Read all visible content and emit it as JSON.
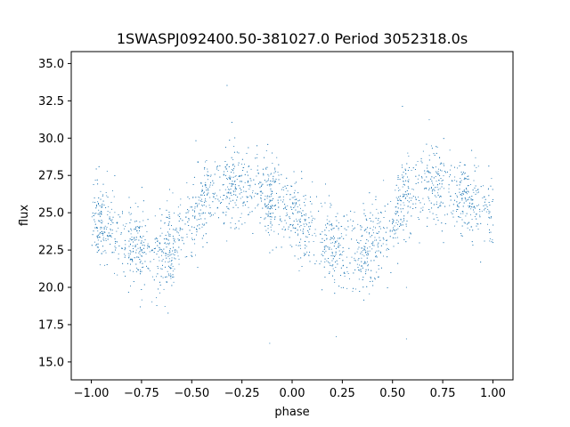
{
  "chart_data": {
    "type": "scatter",
    "title": "1SWASPJ092400.50-381027.0 Period 3052318.0s",
    "xlabel": "phase",
    "ylabel": "flux",
    "xlim": [
      -1.1,
      1.1
    ],
    "ylim": [
      13.8,
      35.8
    ],
    "xticks": [
      -1.0,
      -0.75,
      -0.5,
      -0.25,
      0.0,
      0.25,
      0.5,
      0.75,
      1.0
    ],
    "xtick_labels": [
      "−1.00",
      "−0.75",
      "−0.50",
      "−0.25",
      "0.00",
      "0.25",
      "0.50",
      "0.75",
      "1.00"
    ],
    "yticks": [
      15.0,
      17.5,
      20.0,
      22.5,
      25.0,
      27.5,
      30.0,
      32.5,
      35.0
    ],
    "ytick_labels": [
      "15.0",
      "17.5",
      "20.0",
      "22.5",
      "25.0",
      "27.5",
      "30.0",
      "32.5",
      "35.0"
    ],
    "grid": false,
    "series": [
      {
        "color": "#1f77b4",
        "trend": {
          "x": [
            -1.0,
            -0.9,
            -0.8,
            -0.7,
            -0.6,
            -0.5,
            -0.45,
            -0.4,
            -0.3,
            -0.2,
            -0.1,
            0.0,
            0.1,
            0.2,
            0.3,
            0.4,
            0.5,
            0.55,
            0.6,
            0.7,
            0.8,
            0.9,
            1.0
          ],
          "y": [
            24.8,
            23.7,
            22.8,
            22.4,
            22.8,
            24.2,
            26.0,
            26.3,
            26.8,
            26.6,
            25.8,
            24.8,
            23.6,
            22.8,
            22.4,
            22.8,
            24.2,
            26.0,
            26.3,
            26.8,
            26.6,
            25.8,
            24.8
          ]
        },
        "scatter_sd": 1.3
      }
    ]
  }
}
